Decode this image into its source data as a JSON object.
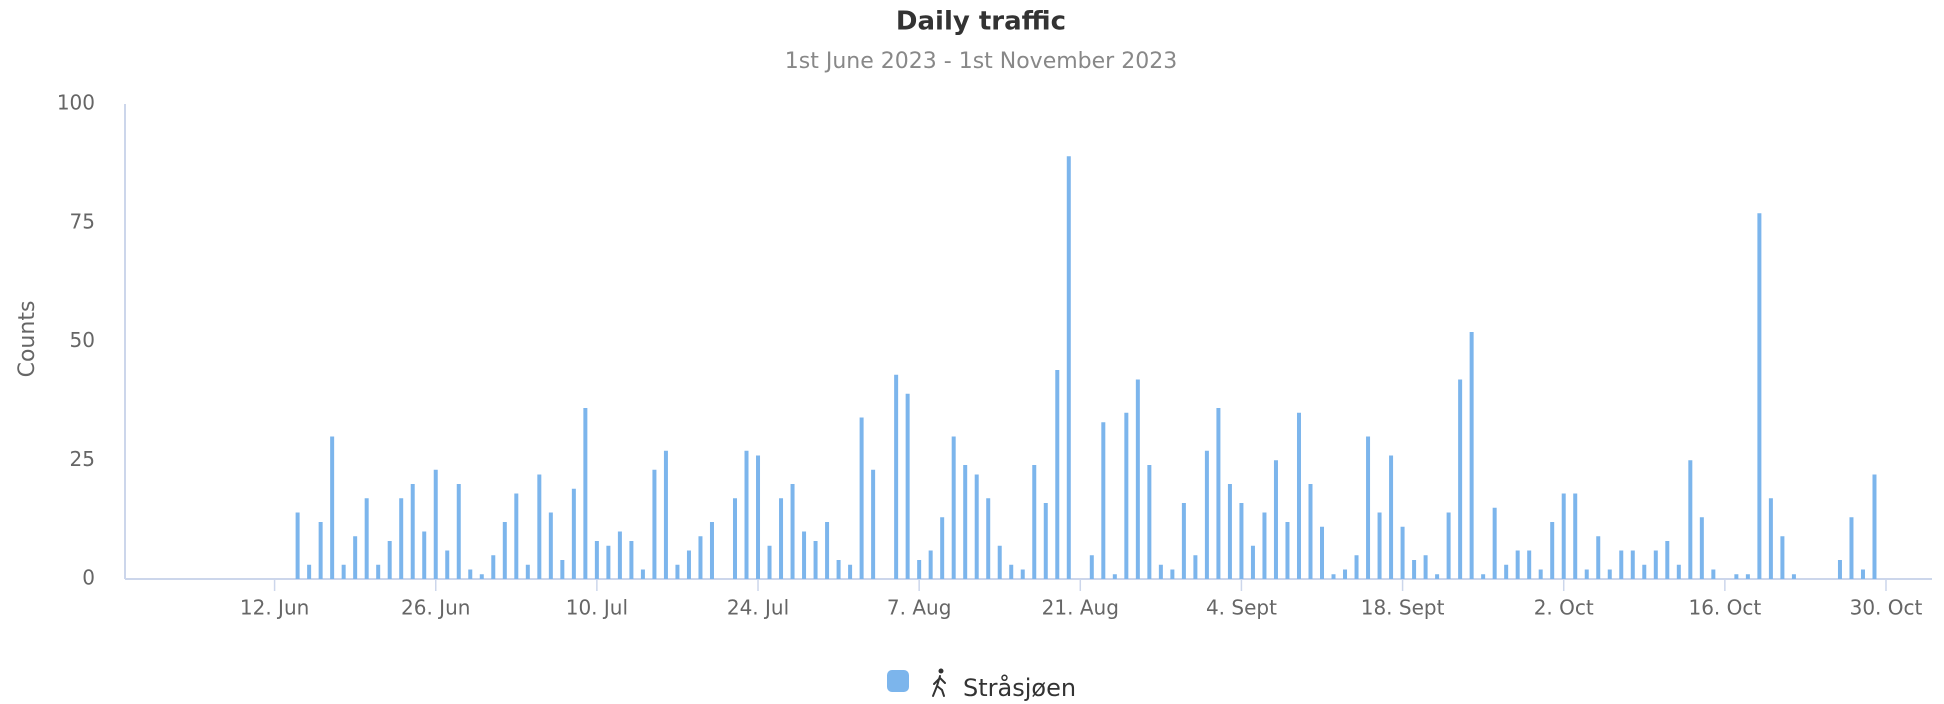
{
  "chart_data": {
    "type": "bar",
    "title": "Daily traffic",
    "subtitle": "1st June 2023 - 1st November 2023",
    "y_label": "Counts",
    "ylim": [
      0,
      100
    ],
    "yticks": [
      0,
      25,
      50,
      75,
      100
    ],
    "grid": false,
    "legend": "bottom",
    "categories": [
      null,
      null,
      null,
      null,
      null,
      null,
      null,
      null,
      null,
      null,
      null,
      "12. Jun",
      null,
      null,
      null,
      null,
      null,
      null,
      null,
      null,
      null,
      null,
      null,
      null,
      null,
      "26. Jun",
      null,
      null,
      null,
      null,
      null,
      null,
      null,
      null,
      null,
      null,
      null,
      null,
      null,
      "10. Jul",
      null,
      null,
      null,
      null,
      null,
      null,
      null,
      null,
      null,
      null,
      null,
      null,
      null,
      "24. Jul",
      null,
      null,
      null,
      null,
      null,
      null,
      null,
      null,
      null,
      null,
      null,
      null,
      null,
      "7. Aug",
      null,
      null,
      null,
      null,
      null,
      null,
      null,
      null,
      null,
      null,
      null,
      null,
      null,
      "21. Aug",
      null,
      null,
      null,
      null,
      null,
      null,
      null,
      null,
      null,
      null,
      null,
      null,
      null,
      "4. Sept",
      null,
      null,
      null,
      null,
      null,
      null,
      null,
      null,
      null,
      null,
      null,
      null,
      null,
      "18. Sept",
      null,
      null,
      null,
      null,
      null,
      null,
      null,
      null,
      null,
      null,
      null,
      null,
      null,
      "2. Oct",
      null,
      null,
      null,
      null,
      null,
      null,
      null,
      null,
      null,
      null,
      null,
      null,
      null,
      "16. Oct",
      null,
      null,
      null,
      null,
      null,
      null,
      null,
      null,
      null,
      null,
      null,
      null,
      null,
      "30. Oct",
      null,
      null
    ],
    "series": [
      {
        "name": "Stråsjøen",
        "color": "#7cb5ec",
        "values": [
          null,
          null,
          null,
          null,
          null,
          null,
          null,
          null,
          null,
          null,
          null,
          null,
          null,
          14,
          3,
          12,
          30,
          3,
          9,
          17,
          3,
          8,
          17,
          20,
          10,
          23,
          6,
          20,
          2,
          1,
          5,
          12,
          18,
          3,
          22,
          14,
          4,
          19,
          36,
          8,
          7,
          10,
          8,
          2,
          23,
          27,
          3,
          6,
          9,
          12,
          0,
          17,
          27,
          26,
          7,
          17,
          20,
          10,
          8,
          12,
          4,
          3,
          34,
          23,
          0,
          43,
          39,
          4,
          6,
          13,
          30,
          24,
          22,
          17,
          7,
          3,
          2,
          24,
          16,
          44,
          89,
          0,
          5,
          33,
          1,
          35,
          42,
          24,
          3,
          2,
          16,
          5,
          27,
          36,
          20,
          16,
          7,
          14,
          25,
          12,
          35,
          20,
          11,
          1,
          2,
          5,
          30,
          14,
          26,
          11,
          4,
          5,
          1,
          14,
          42,
          52,
          1,
          15,
          3,
          6,
          6,
          2,
          12,
          18,
          18,
          2,
          9,
          2,
          6,
          6,
          3,
          6,
          8,
          3,
          25,
          13,
          2,
          0,
          1,
          1,
          77,
          17,
          9,
          1,
          0,
          0,
          0,
          4,
          13,
          2,
          22,
          null,
          null,
          null
        ]
      }
    ]
  }
}
